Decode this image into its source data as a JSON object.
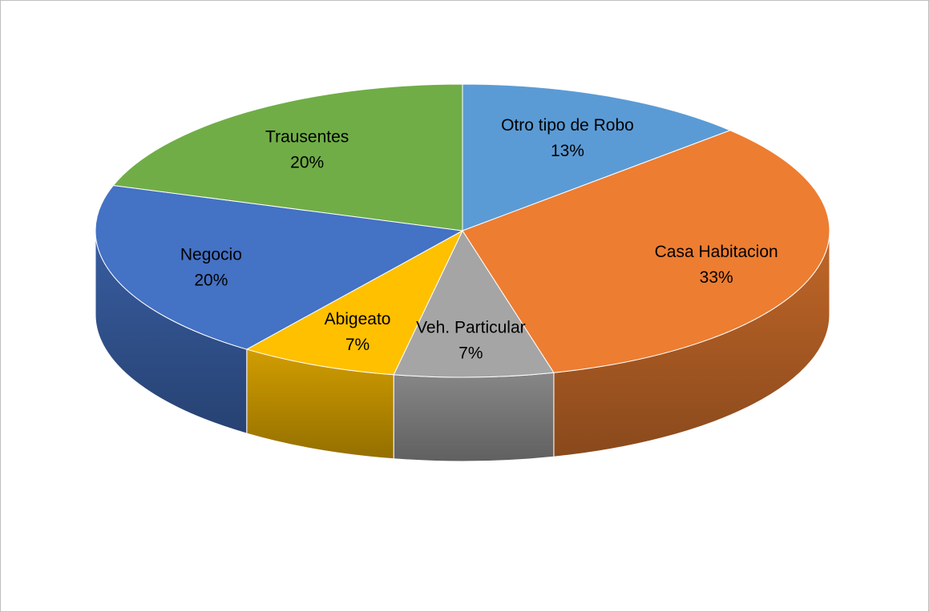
{
  "chart_data": {
    "type": "pie",
    "style": "3d",
    "categories": [
      "Otro tipo de Robo",
      "Casa Habitacion",
      "Veh. Particular",
      "Abigeato",
      "Negocio",
      "Trausentes"
    ],
    "values": [
      13,
      33,
      7,
      7,
      20,
      20
    ],
    "value_labels": [
      "13%",
      "33%",
      "7%",
      "7%",
      "20%",
      "20%"
    ],
    "colors": [
      "#5b9bd5",
      "#ed7d31",
      "#a5a5a5",
      "#ffc000",
      "#4472c4",
      "#70ad47"
    ],
    "start_angle_deg": 0,
    "direction": "clockwise",
    "legend": "none",
    "title": ""
  }
}
